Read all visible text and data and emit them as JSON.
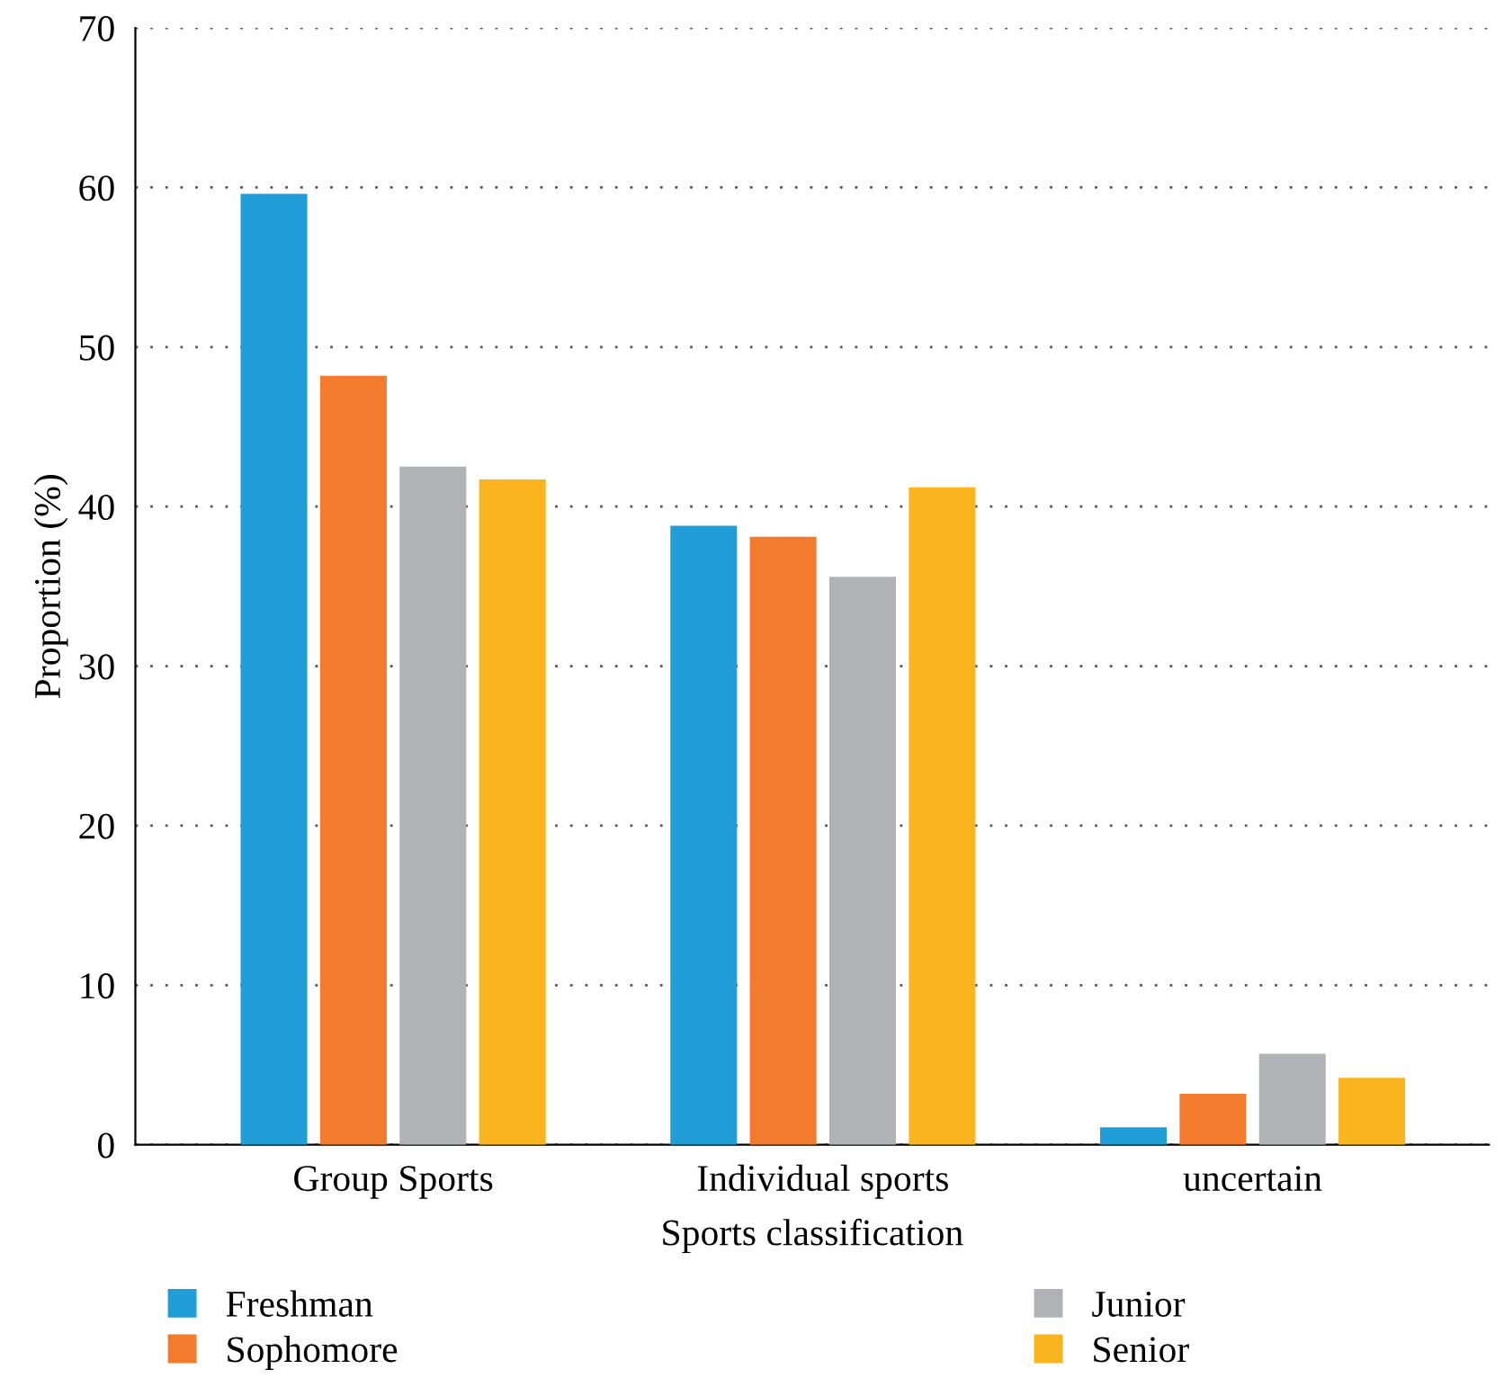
{
  "chart_data": {
    "type": "bar",
    "xlabel": "Sports classification",
    "ylabel": "Proportion (%)",
    "categories": [
      "Group Sports",
      "Individual sports",
      "uncertain"
    ],
    "series": [
      {
        "name": "Freshman",
        "color": "#219ed8",
        "values": [
          59.6,
          38.8,
          1.1
        ]
      },
      {
        "name": "Sophomore",
        "color": "#f37b2d",
        "values": [
          48.2,
          38.1,
          3.2
        ]
      },
      {
        "name": "Junior",
        "color": "#b1b2b5",
        "values": [
          42.5,
          35.6,
          5.7
        ]
      },
      {
        "name": "Senior",
        "color": "#fab41e",
        "values": [
          41.7,
          41.2,
          4.2
        ]
      }
    ],
    "ylim": [
      0,
      70
    ],
    "yticks": [
      0,
      10,
      20,
      30,
      40,
      50,
      60,
      70
    ],
    "grid": "y",
    "legend": "bottom"
  }
}
